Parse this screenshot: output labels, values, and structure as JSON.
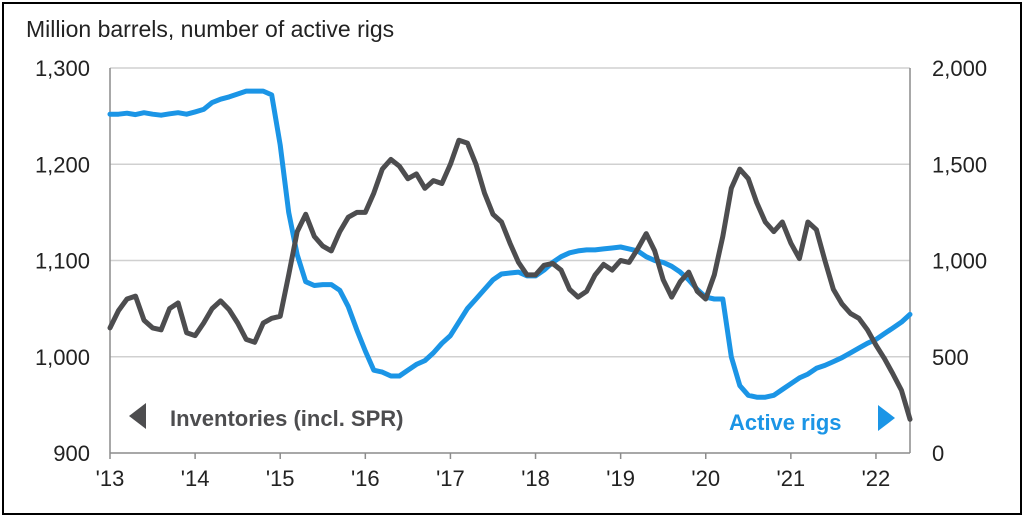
{
  "chart_data": {
    "type": "line",
    "title": "Million barrels, number of active rigs",
    "x_range": [
      2013.0,
      2022.4
    ],
    "x_ticks": [
      {
        "label": "'13",
        "value": 2013
      },
      {
        "label": "'14",
        "value": 2014
      },
      {
        "label": "'15",
        "value": 2015
      },
      {
        "label": "'16",
        "value": 2016
      },
      {
        "label": "'17",
        "value": 2017
      },
      {
        "label": "'18",
        "value": 2018
      },
      {
        "label": "'19",
        "value": 2019
      },
      {
        "label": "'20",
        "value": 2020
      },
      {
        "label": "'21",
        "value": 2021
      },
      {
        "label": "'22",
        "value": 2022
      }
    ],
    "y_left": {
      "min": 900,
      "max": 1300,
      "ticks": [
        "900",
        "1,000",
        "1,100",
        "1,200",
        "1,300"
      ],
      "tick_values": [
        900,
        1000,
        1100,
        1200,
        1300
      ]
    },
    "y_right": {
      "min": 0,
      "max": 2000,
      "ticks": [
        "0",
        "500",
        "1,000",
        "1,500",
        "2,000"
      ],
      "tick_values": [
        0,
        500,
        1000,
        1500,
        2000
      ]
    },
    "grid": true,
    "series": [
      {
        "name": "Inventories (incl. SPR)",
        "axis": "left",
        "color": "#4d4d4f",
        "x": [
          2013.0,
          2013.1,
          2013.2,
          2013.3,
          2013.4,
          2013.5,
          2013.6,
          2013.7,
          2013.8,
          2013.9,
          2014.0,
          2014.1,
          2014.2,
          2014.3,
          2014.4,
          2014.5,
          2014.6,
          2014.7,
          2014.8,
          2014.9,
          2015.0,
          2015.1,
          2015.2,
          2015.3,
          2015.4,
          2015.5,
          2015.6,
          2015.7,
          2015.8,
          2015.9,
          2016.0,
          2016.1,
          2016.2,
          2016.3,
          2016.4,
          2016.5,
          2016.6,
          2016.7,
          2016.8,
          2016.9,
          2017.0,
          2017.1,
          2017.2,
          2017.3,
          2017.4,
          2017.5,
          2017.6,
          2017.7,
          2017.8,
          2017.9,
          2018.0,
          2018.1,
          2018.2,
          2018.3,
          2018.4,
          2018.5,
          2018.6,
          2018.7,
          2018.8,
          2018.9,
          2019.0,
          2019.1,
          2019.2,
          2019.3,
          2019.4,
          2019.5,
          2019.6,
          2019.7,
          2019.8,
          2019.9,
          2020.0,
          2020.1,
          2020.2,
          2020.3,
          2020.4,
          2020.5,
          2020.6,
          2020.7,
          2020.8,
          2020.9,
          2021.0,
          2021.1,
          2021.2,
          2021.3,
          2021.4,
          2021.5,
          2021.6,
          2021.7,
          2021.8,
          2021.9,
          2022.0,
          2022.1,
          2022.2,
          2022.3,
          2022.4
        ],
        "values": [
          1030,
          1048,
          1060,
          1063,
          1038,
          1030,
          1028,
          1050,
          1056,
          1025,
          1022,
          1035,
          1050,
          1058,
          1049,
          1035,
          1018,
          1015,
          1035,
          1040,
          1042,
          1085,
          1130,
          1148,
          1125,
          1115,
          1110,
          1130,
          1145,
          1150,
          1150,
          1170,
          1195,
          1205,
          1198,
          1185,
          1190,
          1175,
          1183,
          1180,
          1200,
          1225,
          1222,
          1200,
          1170,
          1148,
          1140,
          1118,
          1098,
          1085,
          1085,
          1095,
          1097,
          1090,
          1070,
          1062,
          1068,
          1085,
          1096,
          1090,
          1100,
          1098,
          1112,
          1128,
          1110,
          1080,
          1062,
          1078,
          1088,
          1068,
          1060,
          1085,
          1125,
          1175,
          1195,
          1185,
          1160,
          1140,
          1130,
          1140,
          1118,
          1102,
          1140,
          1132,
          1100,
          1070,
          1055,
          1045,
          1040,
          1028,
          1012,
          998,
          982,
          965,
          935
        ]
      },
      {
        "name": "Active rigs",
        "axis": "right",
        "color": "#1b95e6",
        "x": [
          2013.0,
          2013.1,
          2013.2,
          2013.3,
          2013.4,
          2013.5,
          2013.6,
          2013.7,
          2013.8,
          2013.9,
          2014.0,
          2014.1,
          2014.2,
          2014.3,
          2014.4,
          2014.5,
          2014.6,
          2014.7,
          2014.8,
          2014.9,
          2015.0,
          2015.1,
          2015.2,
          2015.3,
          2015.4,
          2015.5,
          2015.6,
          2015.7,
          2015.8,
          2015.9,
          2016.0,
          2016.1,
          2016.2,
          2016.3,
          2016.4,
          2016.5,
          2016.6,
          2016.7,
          2016.8,
          2016.9,
          2017.0,
          2017.1,
          2017.2,
          2017.3,
          2017.4,
          2017.5,
          2017.6,
          2017.7,
          2017.8,
          2017.9,
          2018.0,
          2018.1,
          2018.2,
          2018.3,
          2018.4,
          2018.5,
          2018.6,
          2018.7,
          2018.8,
          2018.9,
          2019.0,
          2019.1,
          2019.2,
          2019.3,
          2019.4,
          2019.5,
          2019.6,
          2019.7,
          2019.8,
          2019.9,
          2020.0,
          2020.1,
          2020.2,
          2020.3,
          2020.4,
          2020.5,
          2020.6,
          2020.7,
          2020.8,
          2020.9,
          2021.0,
          2021.1,
          2021.2,
          2021.3,
          2021.4,
          2021.5,
          2021.6,
          2021.7,
          2021.8,
          2021.9,
          2022.0,
          2022.1,
          2022.2,
          2022.3,
          2022.4
        ],
        "values": [
          1760,
          1760,
          1765,
          1758,
          1768,
          1760,
          1755,
          1762,
          1768,
          1760,
          1772,
          1785,
          1820,
          1838,
          1850,
          1865,
          1880,
          1880,
          1880,
          1860,
          1600,
          1250,
          1030,
          890,
          870,
          875,
          875,
          845,
          760,
          640,
          530,
          430,
          420,
          400,
          400,
          430,
          460,
          480,
          520,
          570,
          610,
          680,
          750,
          800,
          850,
          900,
          930,
          935,
          940,
          920,
          920,
          950,
          990,
          1020,
          1040,
          1050,
          1055,
          1055,
          1060,
          1065,
          1070,
          1060,
          1050,
          1020,
          1000,
          990,
          970,
          940,
          900,
          850,
          810,
          800,
          800,
          500,
          350,
          300,
          290,
          290,
          300,
          330,
          360,
          390,
          410,
          440,
          455,
          475,
          495,
          520,
          545,
          570,
          590,
          620,
          650,
          680,
          720
        ]
      }
    ],
    "annotations": [
      {
        "text": "Inventories (incl. SPR)",
        "arrow": "left"
      },
      {
        "text": "Active rigs",
        "arrow": "right"
      }
    ]
  }
}
